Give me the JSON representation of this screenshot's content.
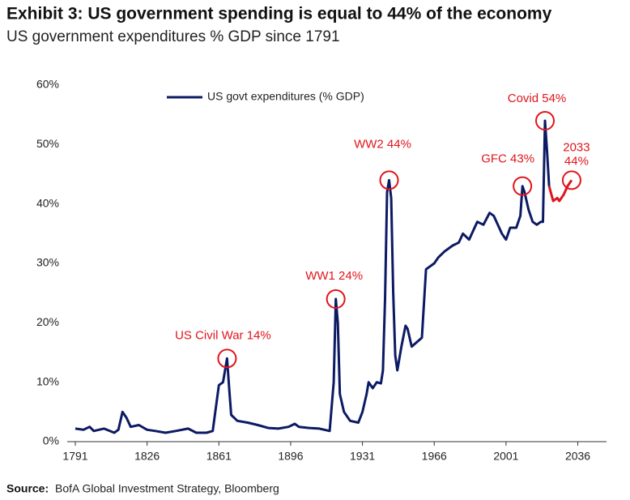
{
  "chart_data": {
    "type": "line",
    "title": "Exhibit 3: US government spending is equal to 44% of the economy",
    "subtitle": "US government expenditures % GDP since 1791",
    "source": {
      "label": "Source:",
      "text": "BofA Global Investment Strategy, Bloomberg"
    },
    "legend": "top",
    "xlim": [
      1791,
      2050
    ],
    "xticks": [
      1791,
      1826,
      1861,
      1896,
      1931,
      1966,
      2001,
      2036
    ],
    "ylim": [
      0,
      60
    ],
    "yticks": [
      {
        "value": 0,
        "label": "0%"
      },
      {
        "value": 10,
        "label": "10%"
      },
      {
        "value": 20,
        "label": "20%"
      },
      {
        "value": 30,
        "label": "30%"
      },
      {
        "value": 40,
        "label": "40%"
      },
      {
        "value": 50,
        "label": "50%"
      },
      {
        "value": 60,
        "label": "60%"
      }
    ],
    "series": [
      {
        "name": "US govt expenditures (% GDP)",
        "color": "#0c1a63",
        "x": [
          1791,
          1795,
          1798,
          1800,
          1805,
          1810,
          1812,
          1814,
          1816,
          1818,
          1822,
          1826,
          1830,
          1835,
          1840,
          1846,
          1850,
          1855,
          1858,
          1861,
          1863,
          1865,
          1866,
          1867,
          1870,
          1875,
          1880,
          1885,
          1890,
          1895,
          1898,
          1900,
          1905,
          1910,
          1915,
          1917,
          1918,
          1919,
          1920,
          1922,
          1925,
          1929,
          1931,
          1933,
          1934,
          1936,
          1938,
          1940,
          1941,
          1942,
          1943,
          1944,
          1945,
          1946,
          1947,
          1948,
          1950,
          1952,
          1953,
          1955,
          1960,
          1962,
          1966,
          1968,
          1971,
          1975,
          1978,
          1980,
          1983,
          1987,
          1990,
          1993,
          1995,
          1999,
          2001,
          2003,
          2006,
          2008,
          2009,
          2010,
          2012,
          2014,
          2016,
          2018,
          2019,
          2020,
          2021,
          2022
        ],
        "values": [
          2.2,
          2,
          2.5,
          1.8,
          2.2,
          1.5,
          2,
          5,
          4,
          2.5,
          2.8,
          2,
          1.8,
          1.5,
          1.8,
          2.2,
          1.5,
          1.5,
          1.8,
          9.5,
          10,
          14,
          9,
          4.5,
          3.5,
          3.2,
          2.8,
          2.3,
          2.2,
          2.5,
          3,
          2.5,
          2.3,
          2.2,
          1.8,
          10,
          24,
          20,
          8,
          5,
          3.5,
          3.2,
          5,
          8,
          10,
          9,
          10,
          9.8,
          12,
          24,
          42,
          44,
          41,
          25,
          14.5,
          12,
          16,
          19.5,
          19,
          16,
          17.5,
          29,
          30,
          31,
          32,
          33,
          33.5,
          35,
          34,
          37,
          36.5,
          38.5,
          38,
          35,
          34,
          36,
          36,
          38,
          43,
          42,
          39,
          37,
          36.5,
          37,
          37,
          54,
          49,
          43
        ]
      },
      {
        "color": "#e0141b",
        "x": [
          2022,
          2024,
          2026,
          2027,
          2029,
          2031,
          2033
        ],
        "values": [
          43,
          40.5,
          41,
          40.5,
          41.5,
          43,
          44
        ]
      }
    ],
    "annotations": [
      {
        "text": "US Civil War 14%",
        "x": 1865,
        "y": 14
      },
      {
        "text": "WW1 24%",
        "x": 1918,
        "y": 24
      },
      {
        "text": "WW2 44%",
        "x": 1944,
        "y": 44
      },
      {
        "text": "GFC 43%",
        "x": 2009,
        "y": 43
      },
      {
        "text": "Covid 54%",
        "x": 2020,
        "y": 54
      },
      {
        "lines": [
          "2033",
          "44%"
        ],
        "x": 2033,
        "y": 44
      }
    ],
    "annotation_color": "#e0141b"
  }
}
